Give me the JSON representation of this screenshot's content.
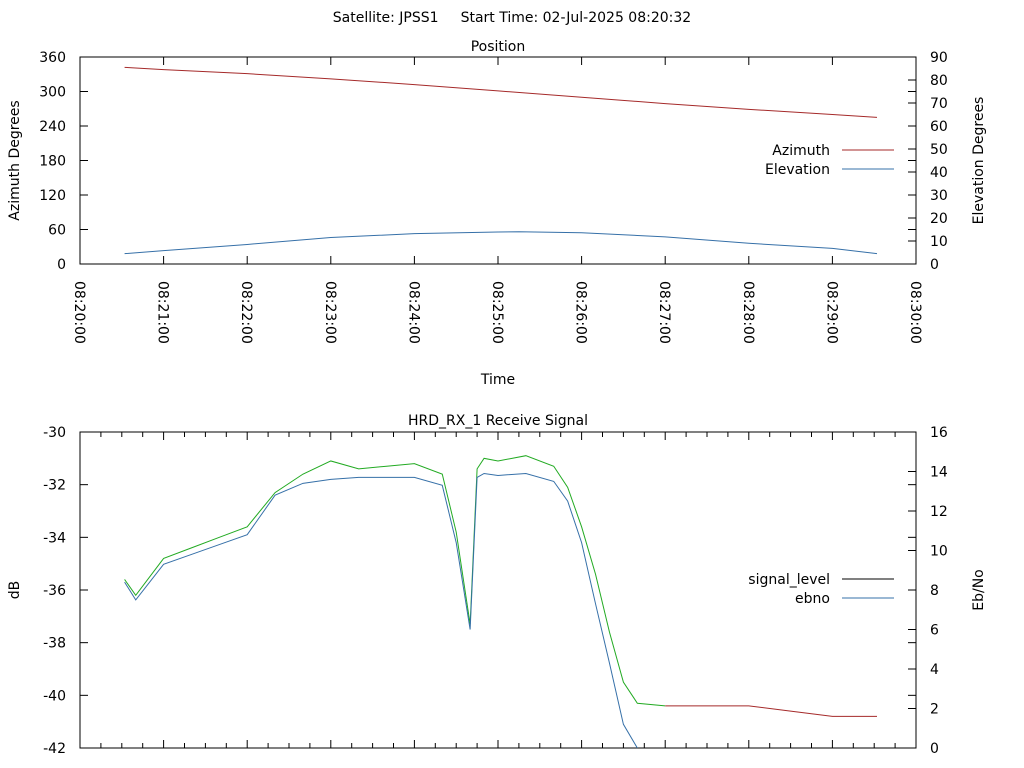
{
  "header": {
    "satellite": "Satellite: JPSS1",
    "start_time": "Start Time: 02-Jul-2025 08:20:32"
  },
  "chart_data": [
    {
      "type": "line",
      "title": "Position",
      "xlabel": "Time",
      "ylabel": "Azimuth Degrees",
      "y2label": "Elevation Degrees",
      "xlim": [
        "08:20:00",
        "08:30:00"
      ],
      "ylim": [
        0,
        360
      ],
      "y2lim": [
        0,
        90
      ],
      "x_ticks": [
        "08:20:00",
        "08:21:00",
        "08:22:00",
        "08:23:00",
        "08:24:00",
        "08:25:00",
        "08:26:00",
        "08:27:00",
        "08:28:00",
        "08:29:00",
        "08:30:00"
      ],
      "y_ticks": [
        "0",
        "60",
        "120",
        "180",
        "240",
        "300",
        "360"
      ],
      "y2_ticks": [
        "0",
        "10",
        "20",
        "30",
        "40",
        "50",
        "60",
        "70",
        "80",
        "90"
      ],
      "grid": false,
      "legend_position": "right",
      "series": [
        {
          "name": "Azimuth",
          "axis": "left",
          "color": "#a52a2a",
          "x": [
            "08:20:32",
            "08:21:00",
            "08:22:00",
            "08:23:00",
            "08:24:00",
            "08:25:00",
            "08:26:00",
            "08:27:00",
            "08:28:00",
            "08:29:00",
            "08:29:32"
          ],
          "values": [
            342,
            338,
            331,
            322,
            312,
            301,
            290,
            279,
            269,
            260,
            255
          ]
        },
        {
          "name": "Elevation",
          "axis": "right",
          "color": "#3670a8",
          "x": [
            "08:20:32",
            "08:21:00",
            "08:22:00",
            "08:23:00",
            "08:24:00",
            "08:25:00",
            "08:25:15",
            "08:26:00",
            "08:27:00",
            "08:28:00",
            "08:29:00",
            "08:29:32"
          ],
          "values": [
            4.5,
            5.8,
            8.5,
            11.5,
            13.2,
            13.9,
            14.0,
            13.6,
            11.8,
            9.0,
            6.8,
            4.5
          ]
        }
      ]
    },
    {
      "type": "line",
      "title": "HRD_RX_1 Receive Signal",
      "ylabel": "dB",
      "y2label": "Eb/No",
      "xlim": [
        "08:20:00",
        "08:30:00"
      ],
      "ylim": [
        -42,
        -30
      ],
      "y2lim": [
        0,
        16
      ],
      "y_ticks": [
        "-42",
        "-40",
        "-38",
        "-36",
        "-34",
        "-32",
        "-30"
      ],
      "y2_ticks": [
        "0",
        "2",
        "4",
        "6",
        "8",
        "10",
        "12",
        "14",
        "16"
      ],
      "grid": false,
      "legend_position": "right",
      "series": [
        {
          "name": "signal_level",
          "axis": "left",
          "color": "#22aa22",
          "color_below_lock": "#a52a2a",
          "legend_color": "#000000",
          "x": [
            "08:20:32",
            "08:20:40",
            "08:21:00",
            "08:21:20",
            "08:21:40",
            "08:22:00",
            "08:22:20",
            "08:22:40",
            "08:23:00",
            "08:23:20",
            "08:23:40",
            "08:24:00",
            "08:24:20",
            "08:24:30",
            "08:24:40",
            "08:24:45",
            "08:24:50",
            "08:25:00",
            "08:25:20",
            "08:25:40",
            "08:25:50",
            "08:26:00",
            "08:26:10",
            "08:26:20",
            "08:26:30",
            "08:26:40",
            "08:27:00",
            "08:27:30",
            "08:28:00",
            "08:28:30",
            "08:29:00",
            "08:29:32"
          ],
          "values": [
            -35.6,
            -36.2,
            -34.8,
            -34.4,
            -34.0,
            -33.6,
            -32.3,
            -31.6,
            -31.1,
            -31.4,
            -31.3,
            -31.2,
            -31.6,
            -33.8,
            -37.3,
            -31.4,
            -31.0,
            -31.1,
            -30.9,
            -31.3,
            -32.1,
            -33.6,
            -35.4,
            -37.6,
            -39.5,
            -40.3,
            -40.4,
            -40.4,
            -40.4,
            -40.6,
            -40.8,
            -40.8
          ]
        },
        {
          "name": "ebno",
          "axis": "right",
          "color": "#3670a8",
          "x": [
            "08:20:32",
            "08:20:40",
            "08:21:00",
            "08:21:20",
            "08:21:40",
            "08:22:00",
            "08:22:20",
            "08:22:40",
            "08:23:00",
            "08:23:20",
            "08:23:40",
            "08:24:00",
            "08:24:20",
            "08:24:30",
            "08:24:40",
            "08:24:45",
            "08:24:50",
            "08:25:00",
            "08:25:20",
            "08:25:40",
            "08:25:50",
            "08:26:00",
            "08:26:10",
            "08:26:20",
            "08:26:30",
            "08:26:40"
          ],
          "values": [
            8.4,
            7.5,
            9.3,
            9.8,
            10.3,
            10.8,
            12.8,
            13.4,
            13.6,
            13.7,
            13.7,
            13.7,
            13.3,
            10.4,
            6.0,
            13.7,
            13.9,
            13.8,
            13.9,
            13.5,
            12.5,
            10.4,
            7.3,
            4.3,
            1.2,
            0
          ]
        }
      ]
    }
  ]
}
